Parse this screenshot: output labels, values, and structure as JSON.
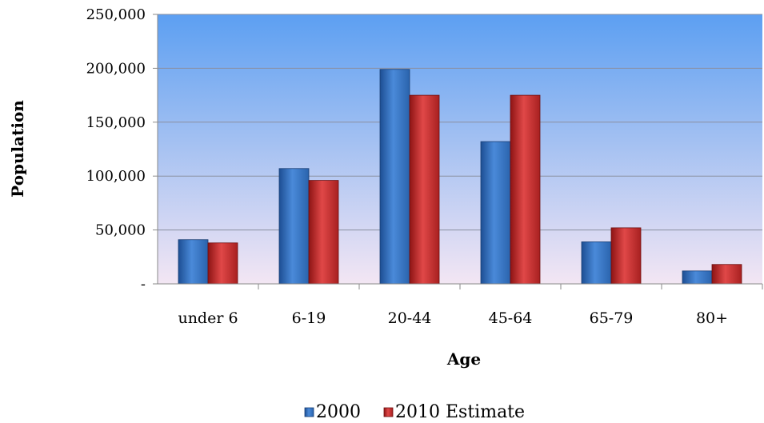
{
  "chart_data": {
    "type": "bar",
    "title": "",
    "xlabel": "Age",
    "ylabel": "Population",
    "categories": [
      "under 6",
      "6-19",
      "20-44",
      "45-64",
      "65-79",
      "80+"
    ],
    "series": [
      {
        "name": "2000",
        "values": [
          41000,
          107000,
          199000,
          132000,
          39000,
          12000
        ],
        "color": "#3a78c8"
      },
      {
        "name": "2010 Estimate",
        "values": [
          38000,
          96000,
          175000,
          175000,
          52000,
          18000
        ],
        "color": "#cc2e2e"
      }
    ],
    "ylim": [
      0,
      250000
    ],
    "yticks": [
      "-",
      "50,000",
      "100,000",
      "150,000",
      "200,000",
      "250,000"
    ],
    "grid": true,
    "legend": "bottom",
    "background_gradient": [
      "#5c9ff2",
      "#f3e6f3"
    ]
  }
}
